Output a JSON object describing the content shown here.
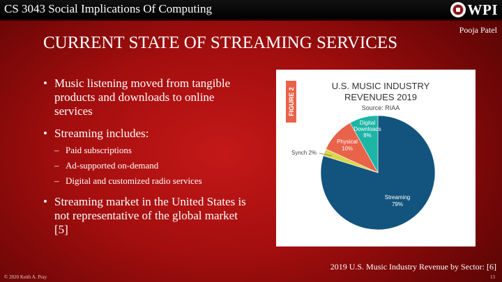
{
  "header": {
    "course_title": "CS 3043 Social Implications Of Computing",
    "logo_text": "WPI",
    "presenter": "Pooja Patel"
  },
  "slide": {
    "title": "CURRENT STATE OF STREAMING SERVICES",
    "bullet_glyph": "•",
    "sub_glyph": "–",
    "bullets": [
      {
        "text": "Music listening moved from tangible products and downloads to online services"
      },
      {
        "text": "Streaming includes:",
        "subitems": [
          "Paid subscriptions",
          "Ad-supported on-demand",
          "Digital and customized radio services"
        ]
      },
      {
        "text": "Streaming market in the United States is not representative of the global market [5]"
      }
    ]
  },
  "chart_data": {
    "type": "pie",
    "figure_label": "FIGURE 2",
    "title_line1": "U.S. MUSIC INDUSTRY",
    "title_line2": "REVENUES 2019",
    "source": "Source: RIAA",
    "slices": [
      {
        "name": "Streaming",
        "value": 79,
        "label": "79%",
        "color": "#13547e"
      },
      {
        "name": "Synch",
        "value": 2,
        "label": "2%",
        "color": "#dbd64a"
      },
      {
        "name": "Physical",
        "value": 10,
        "label": "10%",
        "color": "#e8634a"
      },
      {
        "name": "Digital Downloads",
        "value": 8,
        "label": "8%",
        "color": "#1db5a6"
      }
    ]
  },
  "caption": "2019 U.S. Music Industry Revenue by Sector: [6]",
  "footer": {
    "copyright": "© 2020 Keith A. Pray",
    "page_number": "13"
  }
}
